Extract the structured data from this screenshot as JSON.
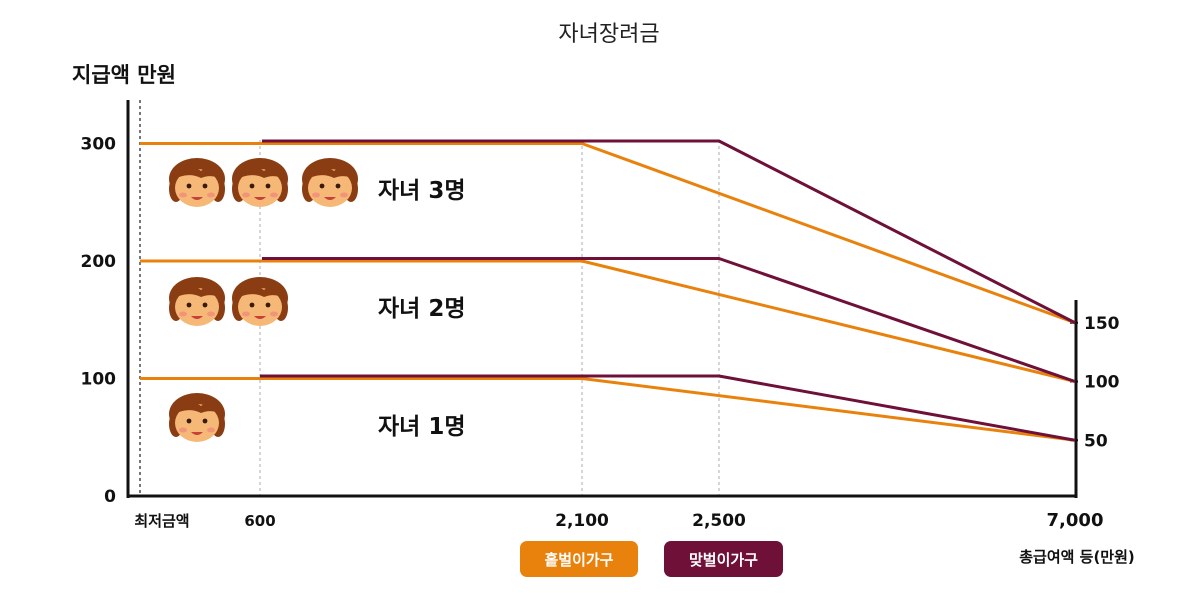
{
  "chart_data": {
    "type": "line",
    "title": "자녀장려금",
    "ylabel": "지급액 만원",
    "xlabel": "총급여액 등(만원)",
    "ylim": [
      0,
      330
    ],
    "x_ticks": [
      "최저금액",
      "600",
      "2,100",
      "2,500",
      "7,000"
    ],
    "y_ticks": [
      "0",
      "100",
      "200",
      "300"
    ],
    "right_ticks": [
      "150",
      "100",
      "50"
    ],
    "legend": [
      "홑벌이가구",
      "맞벌이가구"
    ],
    "colors": {
      "single": "#e8820c",
      "dual": "#6e1038"
    },
    "groups": [
      {
        "label": "자녀 3명",
        "faces": 3,
        "series": [
          {
            "name": "홑벌이가구",
            "points": [
              [
                "최저금액",
                300
              ],
              [
                "2,100",
                300
              ],
              [
                "7,000",
                150
              ]
            ]
          },
          {
            "name": "맞벌이가구",
            "points": [
              [
                "600",
                300
              ],
              [
                "2,500",
                300
              ],
              [
                "7,000",
                150
              ]
            ]
          }
        ]
      },
      {
        "label": "자녀 2명",
        "faces": 2,
        "series": [
          {
            "name": "홑벌이가구",
            "points": [
              [
                "최저금액",
                200
              ],
              [
                "2,100",
                200
              ],
              [
                "7,000",
                100
              ]
            ]
          },
          {
            "name": "맞벌이가구",
            "points": [
              [
                "600",
                200
              ],
              [
                "2,500",
                200
              ],
              [
                "7,000",
                100
              ]
            ]
          }
        ]
      },
      {
        "label": "자녀 1명",
        "faces": 1,
        "series": [
          {
            "name": "홑벌이가구",
            "points": [
              [
                "최저금액",
                100
              ],
              [
                "2,100",
                100
              ],
              [
                "7,000",
                50
              ]
            ]
          },
          {
            "name": "맞벌이가구",
            "points": [
              [
                "600",
                100
              ],
              [
                "2,500",
                100
              ],
              [
                "7,000",
                50
              ]
            ]
          }
        ]
      }
    ]
  }
}
